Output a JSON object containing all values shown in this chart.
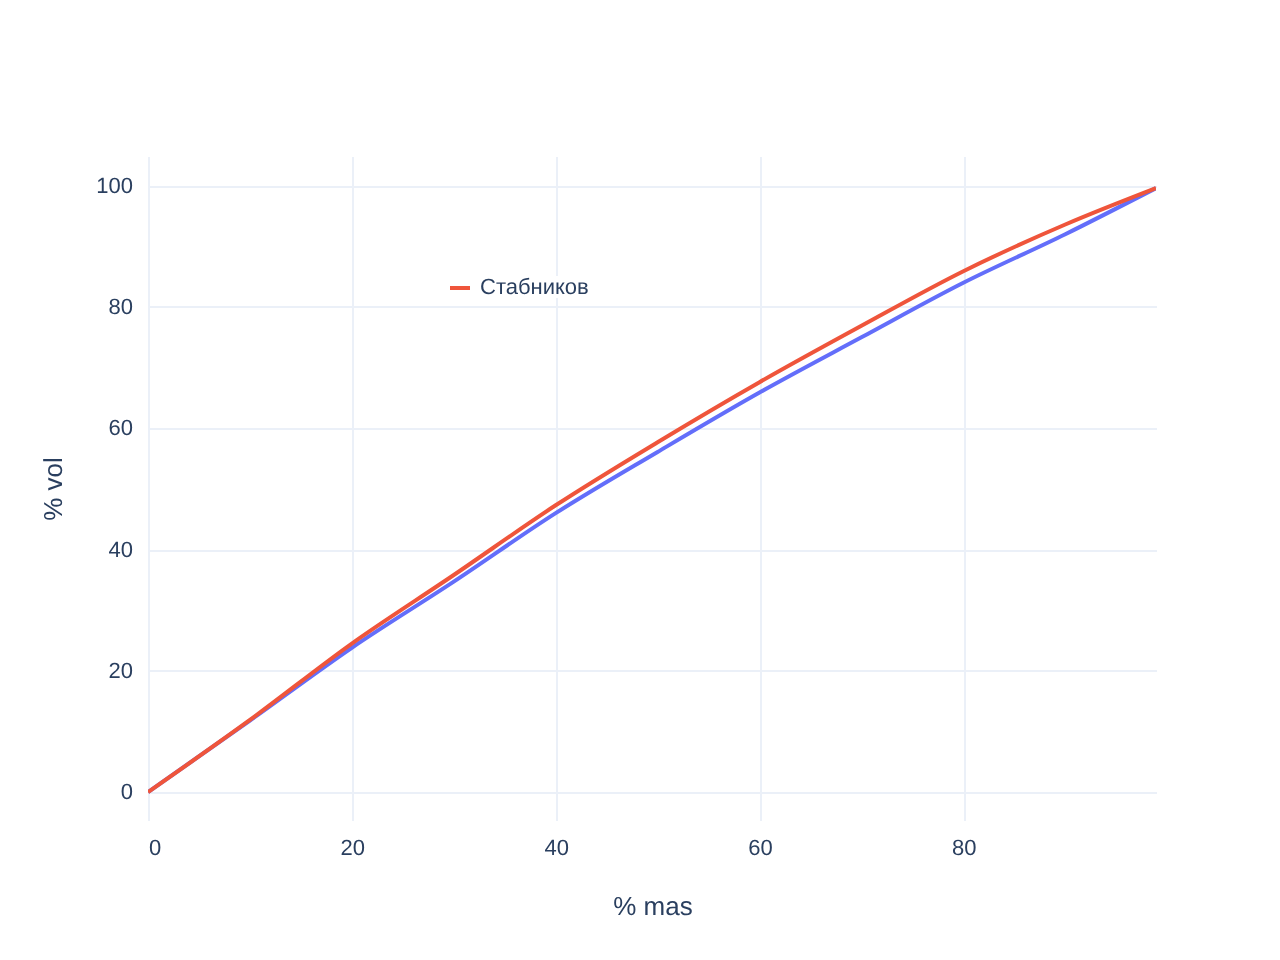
{
  "chart_data": {
    "type": "line",
    "xlabel": "% mas",
    "ylabel": "% vol",
    "x": [
      0,
      10,
      20,
      30,
      40,
      50,
      60,
      70,
      80,
      90,
      98.9
    ],
    "series": [
      {
        "color": "#636efa",
        "values": [
          0,
          11.8,
          23.8,
          34.7,
          46.0,
          56.1,
          65.9,
          75.0,
          84.0,
          92.0,
          99.6
        ]
      },
      {
        "name": "Стабников",
        "color": "#ef553b",
        "values": [
          0,
          11.9,
          24.5,
          35.8,
          47.3,
          57.7,
          67.6,
          76.9,
          85.9,
          93.6,
          99.6
        ]
      }
    ],
    "xlim": [
      0,
      98.9
    ],
    "ylim": [
      -4.6,
      104.9
    ],
    "xticks": [
      0,
      20,
      40,
      60,
      80
    ],
    "yticks": [
      0,
      20,
      40,
      60,
      80,
      100
    ],
    "grid": true,
    "legend": "top left",
    "marker": "none",
    "line_style": "solid"
  }
}
